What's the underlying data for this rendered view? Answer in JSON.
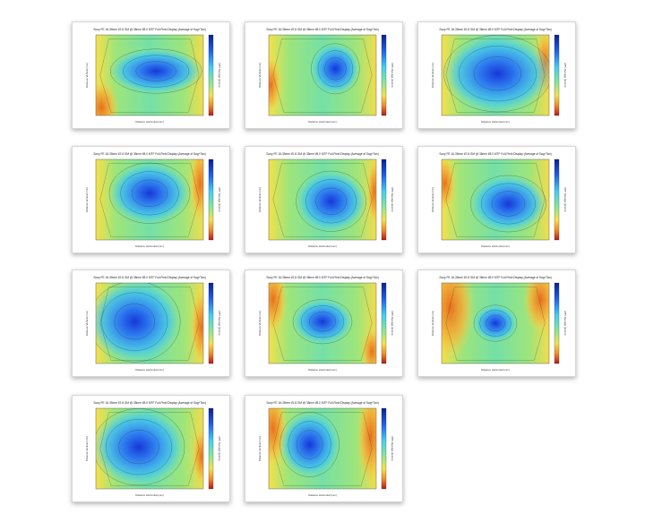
{
  "gallery": {
    "plots": [
      {
        "title": "Sony FE 16-35mm f/2.8 GM @ 35mm f/8.0 MTF Full-Field Display (Average of Sag+Tan)",
        "xlabel": "Distance Horizontal (mm)",
        "ylabel": "Distance Vertical (mm)",
        "cbar_label": "MTF Average (lp/mm)",
        "hot": [
          0.56,
          0.45,
          0.34,
          0.22
        ],
        "warm": [
          [
            0.05,
            0.9,
            0.1,
            0.28
          ]
        ]
      },
      {
        "title": "Sony FE 16-35mm f/2.8 GM @ 35mm f/8.0 MTF Full-Field Display (Average of Sag+Tan)",
        "xlabel": "Distance Horizontal (mm)",
        "ylabel": "Distance Vertical (mm)",
        "cbar_label": "MTF Average (lp/mm)",
        "hot": [
          0.62,
          0.42,
          0.18,
          0.25
        ],
        "warm": [
          [
            0.02,
            0.62,
            0.06,
            0.3
          ]
        ]
      },
      {
        "title": "Sony FE 16-35mm f/2.8 GM @ 35mm f/8.0 MTF Full-Field Display (Average of Sag+Tan)",
        "xlabel": "Distance Horizontal (mm)",
        "ylabel": "Distance Vertical (mm)",
        "cbar_label": "MTF Average (lp/mm)",
        "hot": [
          0.52,
          0.48,
          0.4,
          0.38
        ],
        "warm": [
          [
            0.96,
            0.35,
            0.06,
            0.35
          ]
        ]
      },
      {
        "title": "Sony FE 16-35mm f/2.8 GM @ 35mm f/8.0 MTF Full-Field Display (Average of Sag+Tan)",
        "xlabel": "Distance Horizontal (mm)",
        "ylabel": "Distance Vertical (mm)",
        "cbar_label": "MTF Average (lp/mm)",
        "hot": [
          0.5,
          0.42,
          0.3,
          0.3
        ],
        "warm": [
          [
            0.97,
            0.3,
            0.06,
            0.4
          ]
        ]
      },
      {
        "title": "Sony FE 16-35mm f/2.8 GM @ 35mm f/8.0 MTF Full-Field Display (Average of Sag+Tan)",
        "xlabel": "Distance Horizontal (mm)",
        "ylabel": "Distance Vertical (mm)",
        "cbar_label": "MTF Average (lp/mm)",
        "hot": [
          0.58,
          0.52,
          0.26,
          0.3
        ],
        "warm": [
          [
            0.98,
            0.4,
            0.04,
            0.35
          ]
        ]
      },
      {
        "title": "Sony FE 16-35mm f/2.8 GM @ 35mm f/8.0 MTF Full-Field Display (Average of Sag+Tan)",
        "xlabel": "Distance Horizontal (mm)",
        "ylabel": "Distance Vertical (mm)",
        "cbar_label": "MTF Average (lp/mm)",
        "hot": [
          0.62,
          0.55,
          0.28,
          0.28
        ],
        "warm": [
          [
            0.03,
            0.3,
            0.06,
            0.28
          ]
        ]
      },
      {
        "title": "Sony FE 16-35mm f/2.8 GM @ 35mm f/8.0 MTF Full-Field Display (Average of Sag+Tan)",
        "xlabel": "Distance Horizontal (mm)",
        "ylabel": "Distance Vertical (mm)",
        "cbar_label": "MTF Average (lp/mm)",
        "hot": [
          0.36,
          0.48,
          0.34,
          0.4
        ],
        "warm": [
          [
            0.98,
            0.55,
            0.06,
            0.4
          ]
        ]
      },
      {
        "title": "Sony FE 16-35mm f/2.8 GM @ 35mm f/8.0 MTF Full-Field Display (Average of Sag+Tan)",
        "xlabel": "Distance Horizontal (mm)",
        "ylabel": "Distance Vertical (mm)",
        "cbar_label": "MTF Average (lp/mm)",
        "hot": [
          0.5,
          0.48,
          0.22,
          0.22
        ],
        "warm": [
          [
            0.04,
            0.2,
            0.08,
            0.35
          ],
          [
            0.96,
            0.85,
            0.06,
            0.25
          ]
        ]
      },
      {
        "title": "Sony FE 16-35mm f/2.8 GM @ 35mm f/8.0 MTF Full-Field Display (Average of Sag+Tan)",
        "xlabel": "Distance Horizontal (mm)",
        "ylabel": "Distance Vertical (mm)",
        "cbar_label": "MTF Average (lp/mm)",
        "hot": [
          0.5,
          0.5,
          0.16,
          0.18
        ],
        "warm": [
          [
            0.08,
            0.3,
            0.14,
            0.55
          ],
          [
            0.92,
            0.2,
            0.1,
            0.35
          ]
        ]
      },
      {
        "title": "Sony FE 16-35mm f/2.8 GM @ 35mm f/8.0 MTF Full-Field Display (Average of Sag+Tan)",
        "xlabel": "Distance Horizontal (mm)",
        "ylabel": "Distance Vertical (mm)",
        "cbar_label": "MTF Average (lp/mm)",
        "hot": [
          0.4,
          0.48,
          0.34,
          0.38
        ],
        "warm": [
          [
            0.98,
            0.6,
            0.05,
            0.3
          ]
        ]
      },
      {
        "title": "Sony FE 16-35mm f/2.8 GM @ 35mm f/8.0 MTF Full-Field Display (Average of Sag+Tan)",
        "xlabel": "Distance Horizontal (mm)",
        "ylabel": "Distance Vertical (mm)",
        "cbar_label": "MTF Average (lp/mm)",
        "hot": [
          0.38,
          0.45,
          0.22,
          0.32
        ],
        "warm": [
          [
            0.04,
            0.25,
            0.08,
            0.4
          ],
          [
            0.95,
            0.35,
            0.08,
            0.5
          ]
        ]
      }
    ]
  },
  "chart_data": [
    {
      "type": "heatmap",
      "title": "Sony FE 16-35mm f/2.8 GM @ 35mm f/8.0 MTF Full-Field Display (Average of Sag+Tan)",
      "xlabel": "Distance Horizontal (mm)",
      "ylabel": "Distance Vertical (mm)",
      "colorbar": "MTF Average (lp/mm)",
      "grid": false,
      "legend": "none"
    },
    {
      "type": "heatmap",
      "title": "Sony FE 16-35mm f/2.8 GM @ 35mm f/8.0 MTF Full-Field Display (Average of Sag+Tan)",
      "xlabel": "Distance Horizontal (mm)",
      "ylabel": "Distance Vertical (mm)",
      "colorbar": "MTF Average (lp/mm)",
      "grid": false,
      "legend": "none"
    },
    {
      "type": "heatmap",
      "title": "Sony FE 16-35mm f/2.8 GM @ 35mm f/8.0 MTF Full-Field Display (Average of Sag+Tan)",
      "xlabel": "Distance Horizontal (mm)",
      "ylabel": "Distance Vertical (mm)",
      "colorbar": "MTF Average (lp/mm)",
      "grid": false,
      "legend": "none"
    },
    {
      "type": "heatmap",
      "title": "Sony FE 16-35mm f/2.8 GM @ 35mm f/8.0 MTF Full-Field Display (Average of Sag+Tan)",
      "xlabel": "Distance Horizontal (mm)",
      "ylabel": "Distance Vertical (mm)",
      "colorbar": "MTF Average (lp/mm)",
      "grid": false,
      "legend": "none"
    },
    {
      "type": "heatmap",
      "title": "Sony FE 16-35mm f/2.8 GM @ 35mm f/8.0 MTF Full-Field Display (Average of Sag+Tan)",
      "xlabel": "Distance Horizontal (mm)",
      "ylabel": "Distance Vertical (mm)",
      "colorbar": "MTF Average (lp/mm)",
      "grid": false,
      "legend": "none"
    },
    {
      "type": "heatmap",
      "title": "Sony FE 16-35mm f/2.8 GM @ 35mm f/8.0 MTF Full-Field Display (Average of Sag+Tan)",
      "xlabel": "Distance Horizontal (mm)",
      "ylabel": "Distance Vertical (mm)",
      "colorbar": "MTF Average (lp/mm)",
      "grid": false,
      "legend": "none"
    },
    {
      "type": "heatmap",
      "title": "Sony FE 16-35mm f/2.8 GM @ 35mm f/8.0 MTF Full-Field Display (Average of Sag+Tan)",
      "xlabel": "Distance Horizontal (mm)",
      "ylabel": "Distance Vertical (mm)",
      "colorbar": "MTF Average (lp/mm)",
      "grid": false,
      "legend": "none"
    },
    {
      "type": "heatmap",
      "title": "Sony FE 16-35mm f/2.8 GM @ 35mm f/8.0 MTF Full-Field Display (Average of Sag+Tan)",
      "xlabel": "Distance Horizontal (mm)",
      "ylabel": "Distance Vertical (mm)",
      "colorbar": "MTF Average (lp/mm)",
      "grid": false,
      "legend": "none"
    },
    {
      "type": "heatmap",
      "title": "Sony FE 16-35mm f/2.8 GM @ 35mm f/8.0 MTF Full-Field Display (Average of Sag+Tan)",
      "xlabel": "Distance Horizontal (mm)",
      "ylabel": "Distance Vertical (mm)",
      "colorbar": "MTF Average (lp/mm)",
      "grid": false,
      "legend": "none"
    },
    {
      "type": "heatmap",
      "title": "Sony FE 16-35mm f/2.8 GM @ 35mm f/8.0 MTF Full-Field Display (Average of Sag+Tan)",
      "xlabel": "Distance Horizontal (mm)",
      "ylabel": "Distance Vertical (mm)",
      "colorbar": "MTF Average (lp/mm)",
      "grid": false,
      "legend": "none"
    },
    {
      "type": "heatmap",
      "title": "Sony FE 16-35mm f/2.8 GM @ 35mm f/8.0 MTF Full-Field Display (Average of Sag+Tan)",
      "xlabel": "Distance Horizontal (mm)",
      "ylabel": "Distance Vertical (mm)",
      "colorbar": "MTF Average (lp/mm)",
      "grid": false,
      "legend": "none"
    }
  ]
}
